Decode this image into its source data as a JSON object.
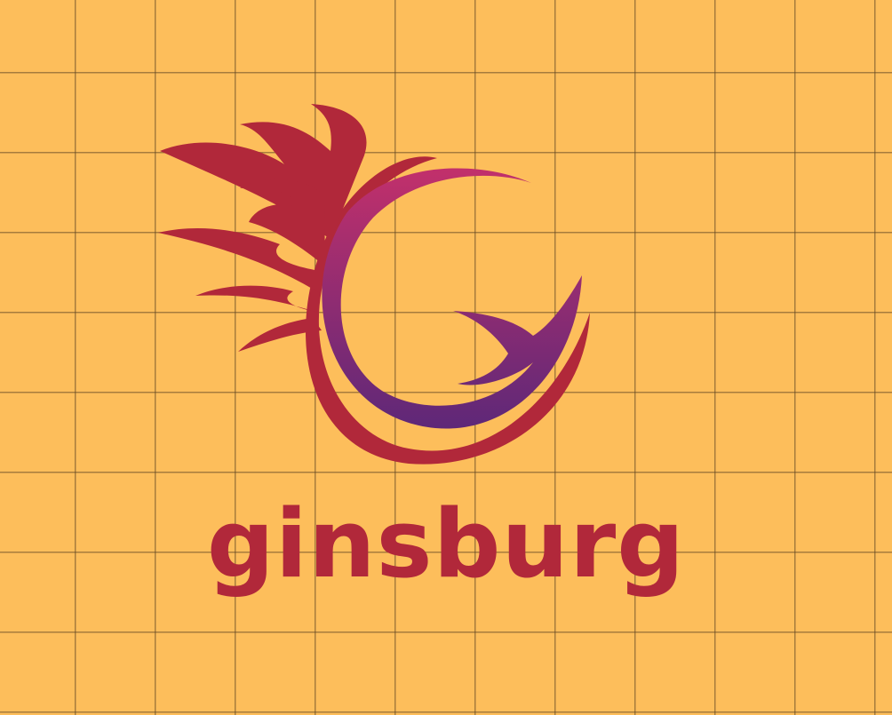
{
  "brand": {
    "name": "ginsburg",
    "colors": {
      "background": "#fdbe5b",
      "flame": "#b1283a",
      "g_gradient_top": "#c2306b",
      "g_gradient_bottom": "#5e2878",
      "grid_line": "#5f4623"
    },
    "icon": "flaming-g-icon"
  }
}
